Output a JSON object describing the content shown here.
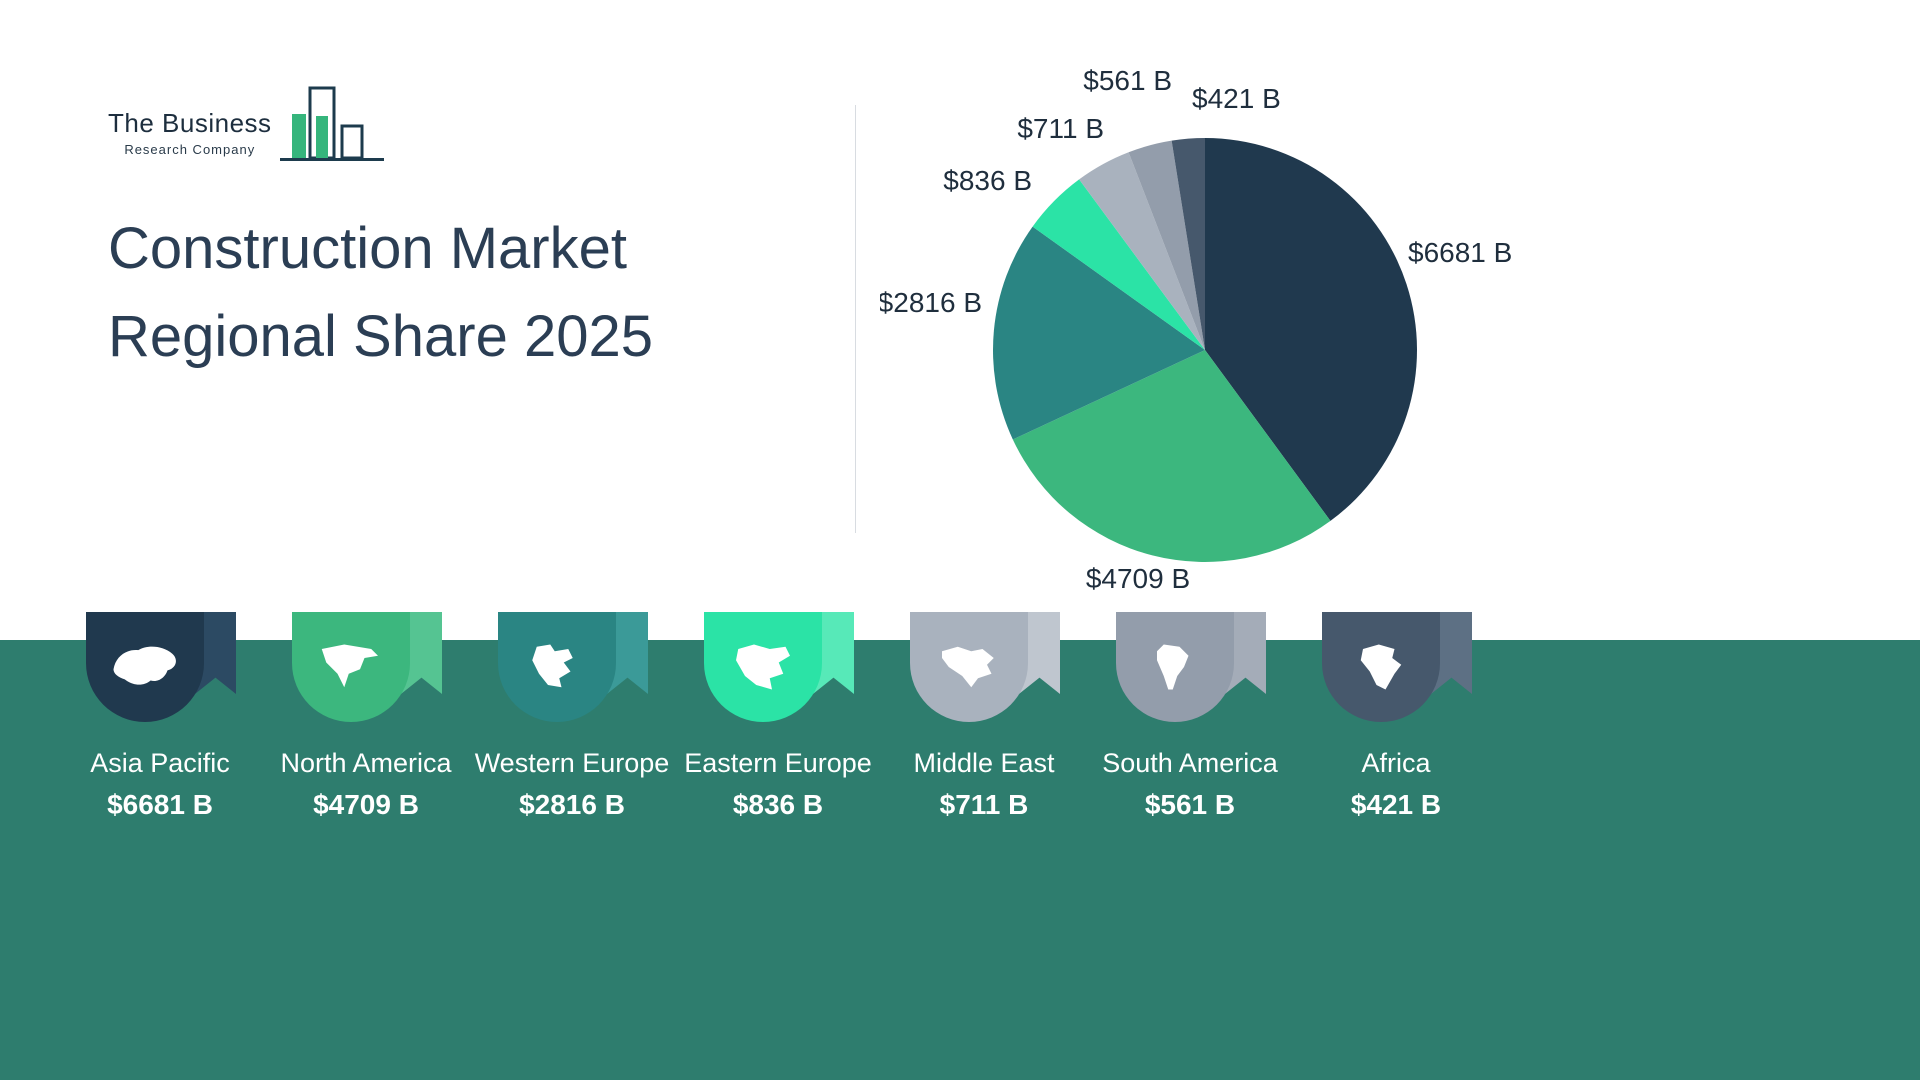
{
  "brand": {
    "name_line1": "The Business",
    "name_line2": "Research Company"
  },
  "title": {
    "line1": "Construction Market",
    "line2": "Regional Share 2025"
  },
  "chart_data": {
    "type": "pie",
    "title": "Construction Market Regional Share 2025",
    "categories": [
      "Asia Pacific",
      "North America",
      "Western Europe",
      "Eastern Europe",
      "Middle East",
      "South America",
      "Africa"
    ],
    "values": [
      6681,
      4709,
      2816,
      836,
      711,
      561,
      421
    ],
    "labels": [
      "$6681 B",
      "$4709 B",
      "$2816 B",
      "$836 B",
      "$711 B",
      "$561 B",
      "$421 B"
    ],
    "colors": [
      "#20394e",
      "#3cb77e",
      "#2a8583",
      "#2be3a6",
      "#a9b2be",
      "#939dab",
      "#46586c"
    ],
    "colors_light": [
      "#2c4a63",
      "#55c492",
      "#3b9a98",
      "#57e9b8",
      "#bfc6cf",
      "#a4acb8",
      "#5d7084"
    ],
    "icons": [
      "asia-pacific-map-icon",
      "north-america-map-icon",
      "western-europe-map-icon",
      "eastern-europe-map-icon",
      "middle-east-map-icon",
      "south-america-map-icon",
      "africa-map-icon"
    ],
    "start_angle": 0,
    "direction": "clockwise",
    "legend_position": "bottom"
  },
  "theme": {
    "band_color": "#2e7d6e",
    "title_color": "#2b3e54",
    "label_color": "#1f2e3d"
  }
}
